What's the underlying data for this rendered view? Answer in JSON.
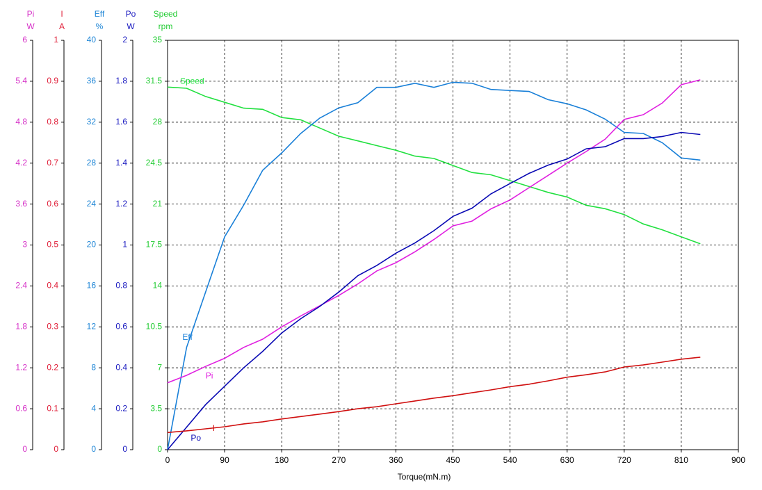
{
  "chart_data": {
    "type": "line",
    "xlabel": "Torque(mN.m)",
    "xlim": [
      0,
      900
    ],
    "xticks": [
      0,
      90,
      180,
      270,
      360,
      450,
      540,
      630,
      720,
      810,
      900
    ],
    "grid": true,
    "y_axes": [
      {
        "title": "Pi",
        "unit": "W",
        "color": "#d633c8",
        "ylim": [
          0,
          6
        ],
        "yticks": [
          0,
          0.6,
          1.2,
          1.8,
          2.4,
          3,
          3.6,
          4.2,
          4.8,
          5.4,
          6
        ]
      },
      {
        "title": "I",
        "unit": "A",
        "color": "#e0203a",
        "ylim": [
          0,
          1
        ],
        "yticks": [
          0,
          0.1,
          0.2,
          0.3,
          0.4,
          0.5,
          0.6,
          0.7,
          0.8,
          0.9,
          1
        ]
      },
      {
        "title": "Eff",
        "unit": "%",
        "color": "#1f86d6",
        "ylim": [
          0,
          40
        ],
        "yticks": [
          0,
          4,
          8,
          12,
          16,
          20,
          24,
          28,
          32,
          36,
          40
        ]
      },
      {
        "title": "Po",
        "unit": "W",
        "color": "#1a1ac0",
        "ylim": [
          0,
          2
        ],
        "yticks": [
          0,
          0.2,
          0.4,
          0.6,
          0.8,
          1,
          1.2,
          1.4,
          1.6,
          1.8,
          2
        ]
      },
      {
        "title": "Speed",
        "unit": "rpm",
        "color": "#22cc33",
        "ylim": [
          0,
          35
        ],
        "yticks": [
          0,
          3.5,
          7,
          10.5,
          14,
          17.5,
          21,
          24.5,
          28,
          31.5,
          35
        ]
      }
    ],
    "x": [
      0,
      30,
      60,
      90,
      120,
      150,
      180,
      210,
      240,
      270,
      300,
      330,
      360,
      390,
      420,
      450,
      480,
      510,
      540,
      570,
      600,
      630,
      660,
      690,
      720,
      750,
      780,
      810,
      840
    ],
    "series": [
      {
        "name": "Speed",
        "color": "#22e040",
        "axis": 4,
        "values": [
          31.0,
          30.9,
          30.2,
          29.7,
          29.2,
          29.1,
          28.4,
          28.2,
          27.5,
          26.8,
          26.4,
          26.0,
          25.6,
          25.1,
          24.9,
          24.3,
          23.7,
          23.5,
          23.0,
          22.5,
          22.0,
          21.6,
          20.9,
          20.6,
          20.1,
          19.3,
          18.8,
          18.2,
          17.6
        ]
      },
      {
        "name": "Eff",
        "color": "#1a80d8",
        "axis": 2,
        "values": [
          0,
          10.0,
          15.4,
          20.8,
          23.9,
          27.3,
          29.0,
          30.9,
          32.4,
          33.4,
          33.9,
          35.4,
          35.4,
          35.8,
          35.4,
          35.9,
          35.8,
          35.2,
          35.1,
          35.0,
          34.2,
          33.8,
          33.2,
          32.3,
          31.0,
          30.9,
          30.0,
          28.5,
          28.3
        ]
      },
      {
        "name": "Pi",
        "color": "#e020e0",
        "axis": 0,
        "values": [
          0.98,
          1.09,
          1.22,
          1.34,
          1.5,
          1.62,
          1.8,
          1.96,
          2.11,
          2.26,
          2.43,
          2.62,
          2.74,
          2.9,
          3.08,
          3.28,
          3.35,
          3.53,
          3.66,
          3.84,
          4.02,
          4.2,
          4.37,
          4.55,
          4.84,
          4.91,
          5.08,
          5.35,
          5.42
        ]
      },
      {
        "name": "Po",
        "color": "#0a0ab4",
        "axis": 3,
        "values": [
          0,
          0.11,
          0.22,
          0.31,
          0.4,
          0.48,
          0.57,
          0.64,
          0.7,
          0.77,
          0.85,
          0.9,
          0.96,
          1.01,
          1.07,
          1.14,
          1.18,
          1.25,
          1.3,
          1.35,
          1.39,
          1.42,
          1.47,
          1.48,
          1.52,
          1.52,
          1.53,
          1.55,
          1.54
        ]
      },
      {
        "name": "I",
        "color": "#d01010",
        "axis": 1,
        "values": [
          0.042,
          0.046,
          0.051,
          0.056,
          0.063,
          0.068,
          0.075,
          0.081,
          0.087,
          0.093,
          0.1,
          0.105,
          0.112,
          0.119,
          0.126,
          0.132,
          0.139,
          0.146,
          0.154,
          0.16,
          0.168,
          0.177,
          0.183,
          0.19,
          0.202,
          0.207,
          0.214,
          0.221,
          0.226
        ]
      }
    ]
  }
}
